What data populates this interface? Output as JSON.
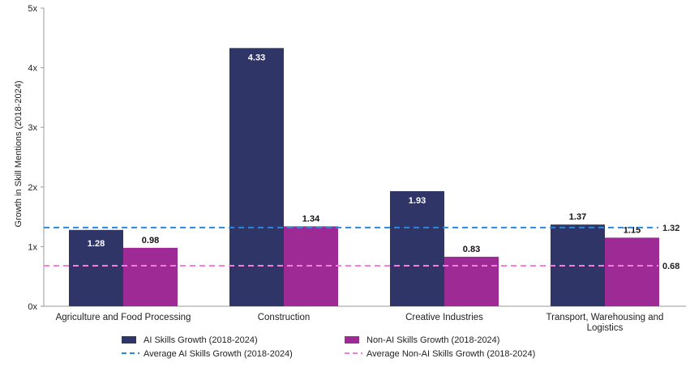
{
  "chart_data": {
    "type": "bar",
    "ylabel": "Growth in Skill Mentions (2018-2024)",
    "ylim": [
      0,
      5
    ],
    "yticks": [
      "0x",
      "1x",
      "2x",
      "3x",
      "4x",
      "5x"
    ],
    "categories": [
      [
        "Agriculture and Food Processing"
      ],
      [
        "Construction"
      ],
      [
        "Creative Industries"
      ],
      [
        "Transport, Warehousing and",
        "Logistics"
      ]
    ],
    "series": [
      {
        "name": "AI Skills Growth (2018-2024)",
        "color": "#2f3566",
        "label_color": "#ffffff",
        "values": [
          1.28,
          4.33,
          1.93,
          1.37
        ],
        "labels": [
          "1.28",
          "4.33",
          "1.93",
          "1.37"
        ]
      },
      {
        "name": "Non-AI Skills Growth (2018-2024)",
        "color": "#9e2a96",
        "label_color": "#111111",
        "values": [
          0.98,
          1.34,
          0.83,
          1.15
        ],
        "labels": [
          "0.98",
          "1.34",
          "0.83",
          "1.15"
        ]
      }
    ],
    "averages": [
      {
        "name": "Average AI Skills Growth (2018-2024)",
        "value": 1.32,
        "label": "1.32",
        "color": "#2e86d6"
      },
      {
        "name": "Average Non-AI Skills Growth (2018-2024)",
        "value": 0.68,
        "label": "0.68",
        "color": "#f07fe0"
      }
    ],
    "grid": false,
    "legend_position": "bottom"
  }
}
